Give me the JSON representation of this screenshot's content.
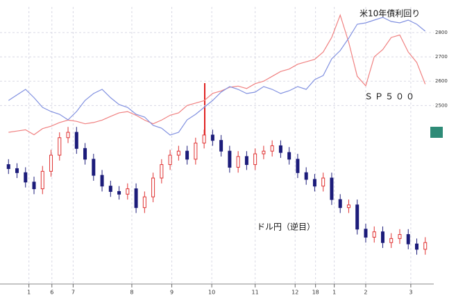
{
  "chart_data": {
    "type": "candlestick",
    "x": [
      0,
      1,
      2,
      3,
      4,
      5,
      6,
      7,
      8,
      9,
      10,
      11,
      12,
      13,
      14,
      15,
      16,
      17,
      18,
      19,
      20,
      21,
      22,
      23,
      24,
      25,
      26,
      27,
      28,
      29,
      30,
      31,
      32,
      33,
      34,
      35,
      36,
      37,
      38,
      39,
      40,
      41,
      42,
      43,
      44,
      45,
      46,
      47,
      48,
      49
    ],
    "xlim": [
      -1,
      50
    ],
    "xticks": [
      {
        "value": 2.4,
        "label": "1"
      },
      {
        "value": 5.1,
        "label": "6"
      },
      {
        "value": 7.6,
        "label": "7"
      },
      {
        "value": 14.5,
        "label": "8"
      },
      {
        "value": 19.2,
        "label": "9"
      },
      {
        "value": 23.9,
        "label": "10"
      },
      {
        "value": 29.0,
        "label": "11"
      },
      {
        "value": 33.7,
        "label": "12"
      },
      {
        "value": 36.1,
        "label": "18"
      },
      {
        "value": 38.3,
        "label": "1"
      },
      {
        "value": 42.0,
        "label": "2"
      },
      {
        "value": 47.3,
        "label": "3"
      }
    ],
    "grid": true,
    "candles": {
      "name": "ドル円（逆目）",
      "up_color": "#e03030",
      "down_color": "#1c1c7a",
      "ylim": [
        102.92,
        124.04
      ],
      "open": [
        111.8,
        111.5,
        111.2,
        110.5,
        110.0,
        111.3,
        112.5,
        113.8,
        114.2,
        113.0,
        112.2,
        111.0,
        110.2,
        109.8,
        109.6,
        110.0,
        108.6,
        109.4,
        110.8,
        111.8,
        112.5,
        112.8,
        112.2,
        113.4,
        114.0,
        113.6,
        112.8,
        111.6,
        112.4,
        111.8,
        112.6,
        112.8,
        113.2,
        112.7,
        112.2,
        111.2,
        110.7,
        110.2,
        110.8,
        109.2,
        108.6,
        108.8,
        107.0,
        106.4,
        106.8,
        106.0,
        106.3,
        106.6,
        105.9,
        105.5
      ],
      "close": [
        111.5,
        111.2,
        110.5,
        110.0,
        111.3,
        112.5,
        113.8,
        114.2,
        113.0,
        112.2,
        111.0,
        110.2,
        109.8,
        109.6,
        110.0,
        108.6,
        109.4,
        110.8,
        111.8,
        112.5,
        112.8,
        112.2,
        113.4,
        114.0,
        113.6,
        112.8,
        111.6,
        112.4,
        111.8,
        112.6,
        112.8,
        113.2,
        112.7,
        112.2,
        111.2,
        110.7,
        110.2,
        110.8,
        109.2,
        108.6,
        108.8,
        107.0,
        106.4,
        106.8,
        106.0,
        106.3,
        106.6,
        105.9,
        105.5,
        106.0
      ],
      "high": [
        112.2,
        111.9,
        111.6,
        110.9,
        111.7,
        112.9,
        114.2,
        114.6,
        114.6,
        113.4,
        112.6,
        111.4,
        110.6,
        110.2,
        110.4,
        110.4,
        109.8,
        111.2,
        112.2,
        112.9,
        113.2,
        113.2,
        113.8,
        114.4,
        114.4,
        114.0,
        113.2,
        112.8,
        112.8,
        113.0,
        113.2,
        113.6,
        113.6,
        113.1,
        112.6,
        111.6,
        111.1,
        111.2,
        111.2,
        109.6,
        109.2,
        109.2,
        107.4,
        107.2,
        107.2,
        106.7,
        107.0,
        107.0,
        106.3,
        106.4
      ],
      "low": [
        111.1,
        110.8,
        110.1,
        109.6,
        109.6,
        110.9,
        112.1,
        113.4,
        112.6,
        111.8,
        110.6,
        109.8,
        109.4,
        109.2,
        109.2,
        108.2,
        108.2,
        109.0,
        110.4,
        111.4,
        112.1,
        111.8,
        111.8,
        113.0,
        113.2,
        112.4,
        111.2,
        111.2,
        111.4,
        111.4,
        112.2,
        112.4,
        112.3,
        111.8,
        110.8,
        110.3,
        109.8,
        109.8,
        108.8,
        108.2,
        108.2,
        106.6,
        106.0,
        106.0,
        105.6,
        105.6,
        105.9,
        105.5,
        105.1,
        105.1
      ]
    },
    "series": [
      {
        "name": "ＳＰ５００",
        "color": "#f08080",
        "axis": "y2",
        "values": [
          2390,
          2395,
          2400,
          2380,
          2405,
          2415,
          2430,
          2440,
          2435,
          2425,
          2430,
          2440,
          2455,
          2470,
          2475,
          2460,
          2440,
          2425,
          2440,
          2460,
          2470,
          2500,
          2510,
          2520,
          2550,
          2560,
          2575,
          2580,
          2570,
          2590,
          2600,
          2620,
          2640,
          2650,
          2670,
          2680,
          2690,
          2720,
          2780,
          2872,
          2760,
          2620,
          2581,
          2700,
          2730,
          2780,
          2790,
          2720,
          2677,
          2588
        ]
      },
      {
        "name": "米10年債利回り",
        "color": "#8090e0",
        "axis": "y3",
        "values": [
          2.3,
          2.34,
          2.38,
          2.32,
          2.25,
          2.22,
          2.2,
          2.16,
          2.22,
          2.3,
          2.35,
          2.38,
          2.32,
          2.27,
          2.25,
          2.2,
          2.18,
          2.12,
          2.1,
          2.05,
          2.07,
          2.16,
          2.2,
          2.25,
          2.3,
          2.36,
          2.4,
          2.38,
          2.35,
          2.36,
          2.4,
          2.38,
          2.35,
          2.37,
          2.4,
          2.38,
          2.45,
          2.48,
          2.6,
          2.66,
          2.75,
          2.85,
          2.86,
          2.88,
          2.9,
          2.87,
          2.86,
          2.88,
          2.85,
          2.8
        ]
      }
    ],
    "y2lim": [
      1766,
      2934
    ],
    "y2ticks": [
      2500,
      2600,
      2700,
      2800
    ],
    "y3lim": [
      0.975,
      3.025
    ]
  }
}
